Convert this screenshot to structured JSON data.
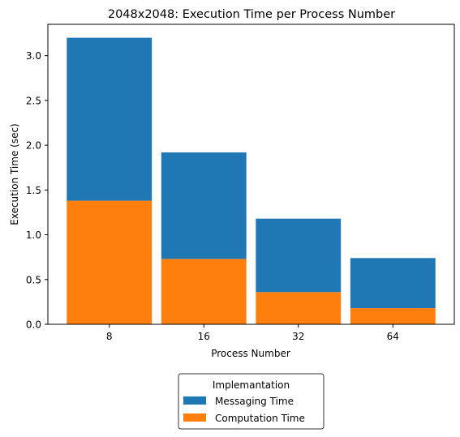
{
  "chart_data": {
    "type": "bar",
    "stacked": true,
    "title": "2048x2048: Execution Time per Process Number",
    "xlabel": "Process Number",
    "ylabel": "Execution Time (sec)",
    "categories": [
      "8",
      "16",
      "32",
      "64"
    ],
    "series": [
      {
        "name": "Computation Time",
        "color": "#ff7f0e",
        "values": [
          1.38,
          0.73,
          0.36,
          0.18
        ]
      },
      {
        "name": "Messaging Time",
        "color": "#1f77b4",
        "values": [
          1.82,
          1.19,
          0.82,
          0.56
        ]
      }
    ],
    "ylim": [
      0,
      3.35
    ],
    "yticks": [
      "0.0",
      "0.5",
      "1.0",
      "1.5",
      "2.0",
      "2.5",
      "3.0"
    ],
    "grid": false,
    "legend": {
      "title": "Implemantation",
      "placement": "bottom-center, below axes",
      "entries": [
        {
          "label": "Messaging Time",
          "color": "#1f77b4"
        },
        {
          "label": "Computation Time",
          "color": "#ff7f0e"
        }
      ]
    }
  }
}
